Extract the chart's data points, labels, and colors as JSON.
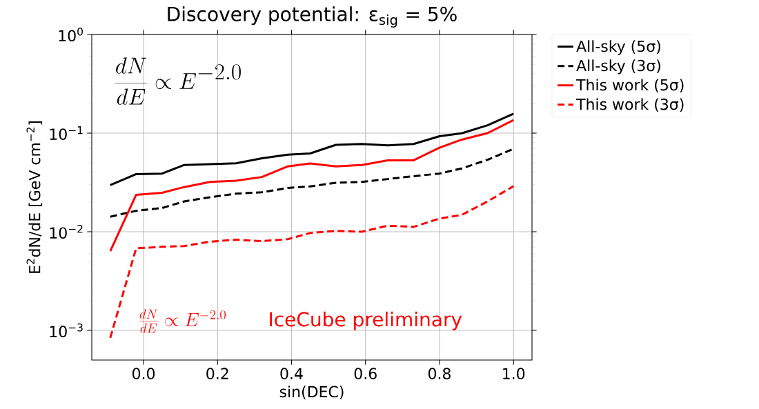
{
  "chart_data": {
    "type": "line",
    "title": "Discovery potential: ε$_{sig}$ = 5%",
    "xlabel": "sin(DEC)",
    "ylabel": "E$^{2}$dN/dE [GeV cm$^{−2}$]",
    "annotations": [
      "\\frac{dN}{dE}\\propto E^{-2.0}",
      "\\frac{dN}{dE}\\propto E^{-2.0}",
      "IceCube preliminary"
    ],
    "x": [
      -0.09,
      -0.02,
      0.05,
      0.11,
      0.18,
      0.25,
      0.32,
      0.39,
      0.45,
      0.52,
      0.59,
      0.66,
      0.73,
      0.8,
      0.86,
      0.93,
      1.0
    ],
    "series": [
      {
        "name": "All-sky (5σ)",
        "color": "#000000",
        "line_style": "solid",
        "values": [
          0.0297,
          0.0384,
          0.0389,
          0.0475,
          0.0485,
          0.0495,
          0.0555,
          0.0605,
          0.0622,
          0.076,
          0.0776,
          0.075,
          0.0776,
          0.093,
          0.0995,
          0.12,
          0.157
        ]
      },
      {
        "name": "All-sky (3σ)",
        "color": "#000000",
        "line_style": "dashed",
        "values": [
          0.0142,
          0.0163,
          0.0174,
          0.0203,
          0.0224,
          0.0243,
          0.0251,
          0.0278,
          0.0288,
          0.0314,
          0.032,
          0.0342,
          0.0366,
          0.0389,
          0.0438,
          0.0537,
          0.0692
        ]
      },
      {
        "name": "This work (5σ)",
        "color": "#ff0000",
        "line_style": "solid",
        "values": [
          0.00635,
          0.0237,
          0.0248,
          0.0284,
          0.032,
          0.0329,
          0.0359,
          0.046,
          0.0492,
          0.046,
          0.0475,
          0.053,
          0.053,
          0.0711,
          0.0859,
          0.1,
          0.1355
        ]
      },
      {
        "name": "This work (3σ)",
        "color": "#ff0000",
        "line_style": "dashed",
        "values": [
          0.00084,
          0.0068,
          0.00703,
          0.00716,
          0.00794,
          0.0083,
          0.00803,
          0.00841,
          0.0097,
          0.0102,
          0.01,
          0.0115,
          0.0112,
          0.0136,
          0.0148,
          0.0203,
          0.029
        ]
      }
    ],
    "xlim": [
      -0.14,
      1.05
    ],
    "xticks": [
      {
        "value": 0,
        "label": "0.0"
      },
      0.2,
      0.4,
      0.6,
      0.8,
      {
        "value": 1,
        "label": "1.0"
      }
    ],
    "ylim": [
      0.0005,
      1
    ],
    "yticks": [
      {
        "value": 0.001,
        "label": "10$^{−3}$"
      },
      {
        "value": 0.01,
        "label": "10$^{−2}$"
      },
      {
        "value": 0.1,
        "label": "10$^{−1}$"
      },
      {
        "value": 1,
        "label": "10$^{0}$"
      }
    ],
    "log": "y",
    "grid": true,
    "legend": "right",
    "marker": "none"
  }
}
